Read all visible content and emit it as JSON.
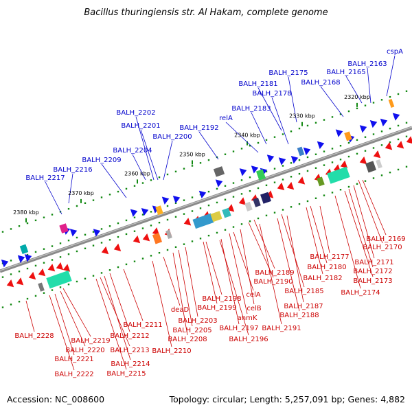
{
  "title": "Bacillus thuringiensis str. Al Hakam, complete genome",
  "footer": {
    "accession": "Accession: NC_008600",
    "topology": "Topology: circular; Length: 5,257,091 bp; Genes: 4,882"
  },
  "colors": {
    "forward_label": "#0000cc",
    "reverse_label": "#cc0000",
    "forward_arrow": "#1010ee",
    "reverse_arrow": "#ee1010",
    "backbone": "#8a8a8a",
    "tick": "#118811"
  },
  "kbp_ticks": [
    "2320 kbp",
    "2330 kbp",
    "2340 kbp",
    "2350 kbp",
    "2360 kbp",
    "2370 kbp",
    "2380 kbp"
  ],
  "forward_labels": [
    "cspA",
    "BALH_2163",
    "BALH_2165",
    "BALH_2168",
    "BALH_2175",
    "BALH_2181",
    "BALH_2178",
    "BALH_2183",
    "relA",
    "BALH_2192",
    "BALH_2202",
    "BALH_2201",
    "BALH_2200",
    "BALH_2204",
    "BALH_2209",
    "BALH_2216",
    "BALH_2217"
  ],
  "reverse_labels": [
    "BALH_2169",
    "BALH_2170",
    "BALH_2177",
    "BALH_2171",
    "BALH_2180",
    "BALH_2172",
    "BALH_2182",
    "BALH_2173",
    "BALH_2174",
    "BALH_2189",
    "BALH_2190",
    "BALH_2185",
    "celA",
    "BALH_2198",
    "BALH_2187",
    "BALH_2199",
    "celB",
    "BALH_2188",
    "deaD",
    "anmK",
    "BALH_2203",
    "BALH_2211",
    "BALH_2197",
    "BALH_2191",
    "BALH_2205",
    "BALH_2196",
    "BALH_2212",
    "BALH_2208",
    "BALH_2228",
    "BALH_2219",
    "BALH_2213",
    "BALH_2210",
    "BALH_2220",
    "BALH_2221",
    "BALH_2214",
    "BALH_2215",
    "BALH_2222"
  ]
}
